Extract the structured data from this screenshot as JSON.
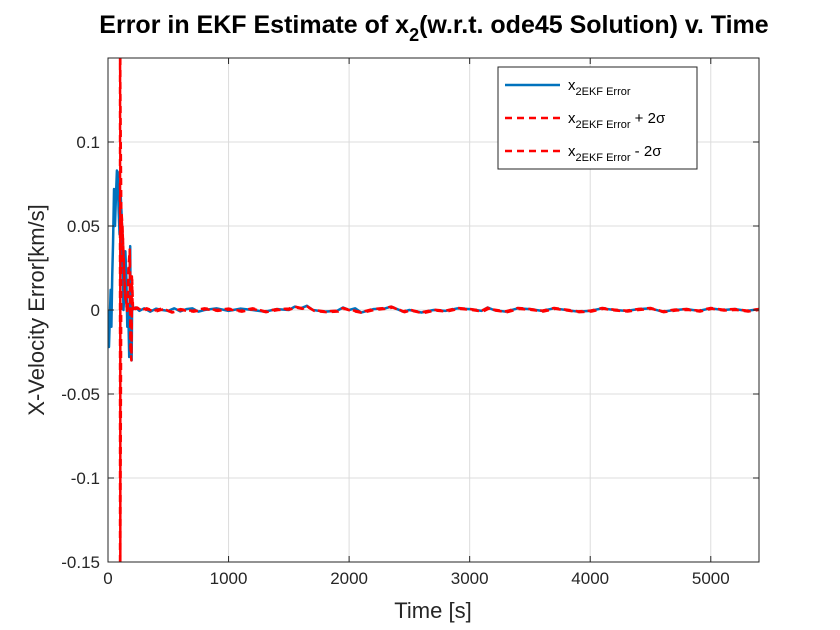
{
  "chart_data": {
    "type": "line",
    "title": {
      "main": "Error in EKF Estimate of x",
      "sub": "2",
      "rest": "(w.r.t. ode45 Solution) v. Time"
    },
    "xlabel": "Time [s]",
    "ylabel": "X-Velocity Error[km/s]",
    "xlim": [
      0,
      5400
    ],
    "ylim": [
      -0.15,
      0.15
    ],
    "xticks": [
      0,
      1000,
      2000,
      3000,
      4000,
      5000
    ],
    "yticks": [
      -0.15,
      -0.1,
      -0.05,
      0,
      0.05,
      0.1
    ],
    "xtick_labels": [
      "0",
      "1000",
      "2000",
      "3000",
      "4000",
      "5000"
    ],
    "ytick_labels": [
      "-0.15",
      "-0.1",
      "-0.05",
      "0",
      "0.05",
      "0.1"
    ],
    "grid": true,
    "legend_placement": "top-right",
    "colors": {
      "error": "#0072BD",
      "sigma": "#FF0000",
      "grid": "#dcdcdc",
      "axis": "#262626"
    },
    "series": [
      {
        "name": "x2EKF Error",
        "legend_main": "x",
        "legend_sub": "2EKF Error",
        "legend_suffix": "",
        "style": "solid",
        "x": [
          0,
          8,
          15,
          22,
          28,
          35,
          42,
          50,
          58,
          66,
          74,
          80,
          88,
          96,
          104,
          112,
          120,
          128,
          136,
          144,
          152,
          160,
          168,
          176,
          184,
          190,
          196,
          200,
          210,
          230,
          260,
          300,
          350,
          400,
          450,
          500,
          550,
          600,
          650,
          700,
          750,
          800,
          900,
          1000,
          1100,
          1200,
          1300,
          1400,
          1500,
          1550,
          1600,
          1650,
          1700,
          1800,
          1900,
          1950,
          2000,
          2050,
          2100,
          2200,
          2300,
          2350,
          2400,
          2450,
          2500,
          2600,
          2700,
          2800,
          2900,
          3000,
          3100,
          3150,
          3200,
          3300,
          3400,
          3500,
          3600,
          3700,
          3800,
          3900,
          4000,
          4100,
          4200,
          4300,
          4400,
          4500,
          4600,
          4700,
          4800,
          4900,
          5000,
          5100,
          5200,
          5300,
          5400
        ],
        "y": [
          0.0,
          -0.022,
          -0.005,
          0.012,
          -0.01,
          0.02,
          0.04,
          0.072,
          0.05,
          0.068,
          0.083,
          0.082,
          0.06,
          0.045,
          0.07,
          0.058,
          0.04,
          0.0,
          0.01,
          0.035,
          0.02,
          -0.01,
          0.0,
          -0.028,
          0.038,
          -0.02,
          -0.03,
          0.001,
          0.001,
          0.0015,
          -0.0005,
          0.001,
          -0.001,
          0.0008,
          0.0,
          -0.0005,
          0.001,
          -0.0008,
          0.0005,
          0.001,
          -0.001,
          0.0,
          0.001,
          -0.0005,
          0.0008,
          0.0,
          -0.001,
          0.0005,
          0.0,
          0.002,
          0.001,
          0.0025,
          0.0,
          -0.001,
          -0.0005,
          0.0015,
          0.0,
          0.001,
          -0.0015,
          0.0005,
          0.001,
          0.002,
          0.0005,
          -0.001,
          0.0,
          -0.0015,
          0.0,
          -0.0005,
          0.001,
          0.0005,
          -0.0005,
          0.0015,
          0.0,
          -0.001,
          0.001,
          0.0005,
          -0.0005,
          0.001,
          0.0,
          -0.001,
          -0.0005,
          0.001,
          0.0,
          -0.0005,
          0.0005,
          0.001,
          -0.001,
          0.0,
          0.0005,
          -0.0005,
          0.001,
          0.0,
          0.0005,
          -0.0005,
          0.0005
        ]
      },
      {
        "name": "x2EKF Error + 2σ",
        "legend_main": "x",
        "legend_sub": "2EKF Error",
        "legend_suffix": " + 2σ",
        "style": "dashed",
        "x": [
          100,
          100,
          110,
          120,
          130,
          140,
          150,
          160,
          170,
          180,
          186,
          192,
          198,
          205,
          215,
          240,
          280,
          320,
          380,
          450,
          520,
          600,
          700,
          800,
          900,
          1000,
          1100,
          1200,
          1300,
          1400,
          1500,
          1550,
          1600,
          1650,
          1700,
          1800,
          1900,
          1950,
          2000,
          2100,
          2200,
          2300,
          2350,
          2400,
          2450,
          2500,
          2600,
          2700,
          2800,
          2900,
          3000,
          3100,
          3150,
          3200,
          3300,
          3400,
          3500,
          3600,
          3700,
          3800,
          3900,
          4000,
          4100,
          4200,
          4300,
          4400,
          4500,
          4600,
          4700,
          4800,
          4900,
          5000,
          5100,
          5200,
          5300,
          5400
        ],
        "y": [
          -0.15,
          0.15,
          0.06,
          0.05,
          0.03,
          0.01,
          0.005,
          0.0,
          0.025,
          0.036,
          -0.022,
          -0.026,
          0.02,
          0.0,
          0.001,
          0.0015,
          0.0,
          0.001,
          -0.0005,
          0.001,
          -0.001,
          0.0005,
          -0.0005,
          0.001,
          0.0,
          0.0008,
          -0.0005,
          0.001,
          -0.0008,
          0.0005,
          0.0008,
          0.002,
          0.0012,
          0.0022,
          0.0,
          -0.0008,
          -0.0004,
          0.0012,
          0.0002,
          -0.0012,
          0.0006,
          0.0012,
          0.002,
          0.0006,
          -0.0008,
          0.0002,
          -0.0014,
          0.0002,
          -0.0004,
          0.0012,
          0.0006,
          -0.0004,
          0.0014,
          0.0002,
          -0.0008,
          0.0012,
          0.0006,
          -0.0004,
          0.0012,
          0.0002,
          -0.0008,
          -0.0004,
          0.0012,
          0.0002,
          -0.0004,
          0.0006,
          0.0012,
          -0.0008,
          0.0002,
          0.0006,
          -0.0004,
          0.0012,
          0.0002,
          0.0006,
          -0.0004,
          0.0006
        ]
      },
      {
        "name": "x2EKF Error - 2σ",
        "legend_main": "x",
        "legend_sub": "2EKF Error",
        "legend_suffix": " - 2σ",
        "style": "dashed",
        "x": [
          102,
          102,
          112,
          122,
          132,
          142,
          152,
          162,
          172,
          182,
          188,
          194,
          200,
          208,
          220,
          250,
          290,
          330,
          390,
          460,
          530,
          610,
          710,
          810,
          910,
          1010,
          1110,
          1210,
          1310,
          1410,
          1510,
          1560,
          1610,
          1660,
          1710,
          1810,
          1910,
          1960,
          2010,
          2110,
          2210,
          2310,
          2360,
          2410,
          2460,
          2510,
          2610,
          2710,
          2810,
          2910,
          3010,
          3110,
          3160,
          3210,
          3310,
          3410,
          3510,
          3610,
          3710,
          3810,
          3910,
          4010,
          4110,
          4210,
          4310,
          4410,
          4510,
          4610,
          4710,
          4810,
          4910,
          5010,
          5110,
          5210,
          5310,
          5400
        ],
        "y": [
          0.15,
          -0.15,
          0.055,
          0.045,
          0.028,
          0.008,
          0.003,
          -0.002,
          0.022,
          0.033,
          -0.025,
          -0.03,
          0.018,
          -0.001,
          0.0005,
          0.001,
          -0.0005,
          0.0005,
          -0.001,
          0.0005,
          -0.0015,
          0.0,
          -0.001,
          0.0005,
          -0.0005,
          0.0003,
          -0.001,
          0.0005,
          -0.0013,
          0.0,
          0.0003,
          0.0015,
          0.0007,
          0.0017,
          -0.0005,
          -0.0013,
          -0.0009,
          0.0007,
          -0.0003,
          -0.0017,
          0.0001,
          0.0007,
          0.0015,
          0.0001,
          -0.0013,
          -0.0003,
          -0.0019,
          -0.0003,
          -0.0009,
          0.0007,
          0.0001,
          -0.0009,
          0.0009,
          -0.0003,
          -0.0013,
          0.0007,
          0.0001,
          -0.0009,
          0.0007,
          -0.0003,
          -0.0013,
          -0.0009,
          0.0007,
          -0.0003,
          -0.0009,
          0.0001,
          0.0007,
          -0.0013,
          -0.0003,
          0.0001,
          -0.0009,
          0.0007,
          -0.0003,
          0.0001,
          -0.0009,
          0.0001
        ]
      }
    ]
  }
}
